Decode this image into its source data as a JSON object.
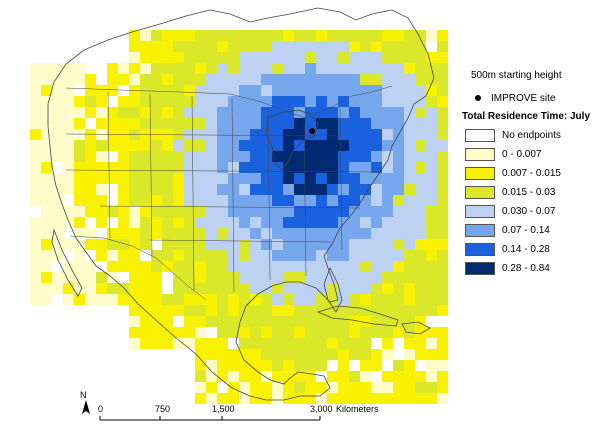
{
  "legend": {
    "height_note": "500m starting height",
    "site_label": "IMPROVE site",
    "title": "Total Residence Time: July",
    "classes": [
      {
        "label": "No endpoints",
        "color": "#ffffff"
      },
      {
        "label": "0 - 0.007",
        "color": "#fefcc8"
      },
      {
        "label": "0.007 - 0.015",
        "color": "#f8f200"
      },
      {
        "label": "0.015 - 0.03",
        "color": "#dbe82a"
      },
      {
        "label": "0.030 - 0.07",
        "color": "#bdd1f2"
      },
      {
        "label": "0.07 - 0.14",
        "color": "#76a7ec"
      },
      {
        "label": "0.14 - 0.28",
        "color": "#1a61e0"
      },
      {
        "label": "0.28 - 0.84",
        "color": "#002b73"
      }
    ]
  },
  "scale_bar": {
    "ticks": [
      "0",
      "750",
      "1,500",
      "3,000"
    ],
    "unit": "Kilometers",
    "north": "N"
  },
  "site_marker": {
    "color": "#000000"
  },
  "boundary_color": "#444444"
}
